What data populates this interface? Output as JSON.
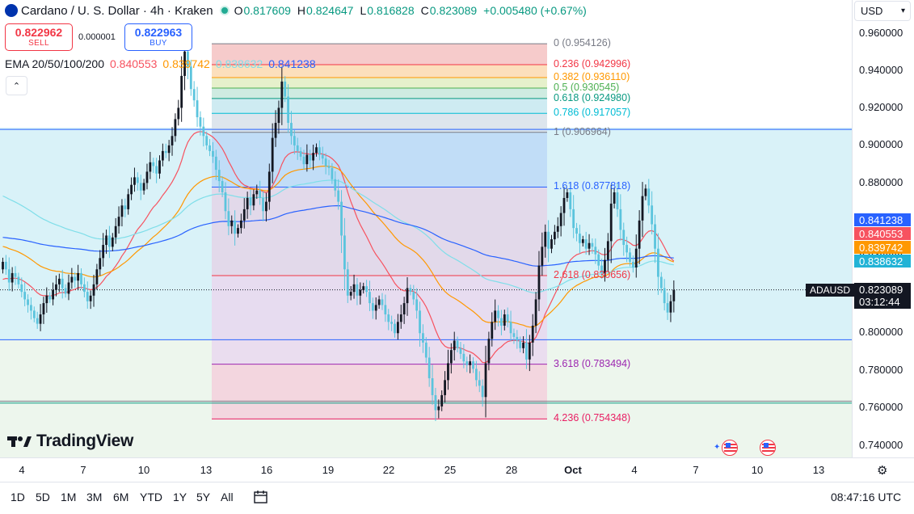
{
  "header": {
    "title": "Cardano / U. S. Dollar · 4h · Kraken",
    "ohlc": [
      {
        "key": "O",
        "value": "0.817609"
      },
      {
        "key": "H",
        "value": "0.824647"
      },
      {
        "key": "L",
        "value": "0.816828"
      },
      {
        "key": "C",
        "value": "0.823089"
      }
    ],
    "change": "+0.005480 (+0.67%)",
    "sell_price": "0.822962",
    "sell_label": "SELL",
    "buy_price": "0.822963",
    "buy_label": "BUY",
    "spread": "0.000001",
    "ema_label": "EMA 20/50/100/200",
    "ema_values": [
      {
        "value": "0.840553",
        "color": "#f7525f"
      },
      {
        "value": "0.839742",
        "color": "#ff9800"
      },
      {
        "value": "0.838632",
        "color": "#7fdee9"
      },
      {
        "value": "0.841238",
        "color": "#2962ff"
      }
    ],
    "collapse_icon": "chevron-up"
  },
  "currency": "USD",
  "symbol": "ADAUSD",
  "current_price": "0.823089",
  "countdown": "03:12:44",
  "price_badges": [
    {
      "value": "0.841238",
      "color": "#2962ff"
    },
    {
      "value": "0.840553",
      "color": "#f7525f"
    },
    {
      "value": "0.839742",
      "color": "#ff9800"
    },
    {
      "value": "0.838632",
      "color": "#22b3d6"
    }
  ],
  "fib_levels": [
    {
      "label": "0 (0.954126)",
      "price": 0.954126,
      "color": "#787b86"
    },
    {
      "label": "0.236 (0.942996)",
      "price": 0.942996,
      "color": "#f23645"
    },
    {
      "label": "0.382 (0.936110)",
      "price": 0.93611,
      "color": "#ff9800"
    },
    {
      "label": "0.5 (0.930545)",
      "price": 0.930545,
      "color": "#4caf50"
    },
    {
      "label": "0.618 (0.924980)",
      "price": 0.92498,
      "color": "#089981"
    },
    {
      "label": "0.786 (0.917057)",
      "price": 0.917057,
      "color": "#00bcd4"
    },
    {
      "label": "1 (0.906964)",
      "price": 0.906964,
      "color": "#787b86"
    },
    {
      "label": "1.618 (0.877818)",
      "price": 0.877818,
      "color": "#2962ff"
    },
    {
      "label": "2.618 (0.830656)",
      "price": 0.830656,
      "color": "#f23645"
    },
    {
      "label": "3.618 (0.783494)",
      "price": 0.783494,
      "color": "#9c27b0"
    },
    {
      "label": "4.236 (0.754348)",
      "price": 0.754348,
      "color": "#e91e63"
    }
  ],
  "horizontal_lines": [
    0.9085,
    0.7965,
    0.7638,
    0.7628
  ],
  "price_ticks": [
    "0.960000",
    "0.940000",
    "0.920000",
    "0.900000",
    "0.880000",
    "0.860000",
    "0.840000",
    "0.820000",
    "0.800000",
    "0.780000",
    "0.760000",
    "0.740000"
  ],
  "date_ticks": [
    "4",
    "7",
    "10",
    "13",
    "16",
    "19",
    "22",
    "25",
    "28",
    "Oct",
    "4",
    "7",
    "10",
    "13"
  ],
  "watermark": "TradingView",
  "range_buttons": [
    "1D",
    "5D",
    "1M",
    "3M",
    "6M",
    "YTD",
    "1Y",
    "5Y",
    "All"
  ],
  "clock": "08:47:16 UTC",
  "chart_data": {
    "type": "candlestick",
    "title": "Cardano / U. S. Dollar · 4h · Kraken",
    "ylim": [
      0.7345,
      0.9715
    ],
    "x_axis_ticks": [
      "4",
      "7",
      "10",
      "13",
      "16",
      "19",
      "22",
      "25",
      "28",
      "Oct",
      "4",
      "7",
      "10",
      "13"
    ],
    "closes": [
      0.838,
      0.834,
      0.827,
      0.832,
      0.83,
      0.826,
      0.822,
      0.818,
      0.815,
      0.812,
      0.808,
      0.805,
      0.81,
      0.816,
      0.82,
      0.818,
      0.823,
      0.826,
      0.829,
      0.824,
      0.821,
      0.827,
      0.83,
      0.828,
      0.832,
      0.826,
      0.822,
      0.817,
      0.82,
      0.826,
      0.834,
      0.84,
      0.847,
      0.852,
      0.846,
      0.851,
      0.857,
      0.862,
      0.868,
      0.866,
      0.874,
      0.879,
      0.883,
      0.88,
      0.876,
      0.88,
      0.886,
      0.891,
      0.889,
      0.885,
      0.892,
      0.897,
      0.896,
      0.9,
      0.905,
      0.914,
      0.92,
      0.937,
      0.95,
      0.942,
      0.93,
      0.924,
      0.915,
      0.91,
      0.905,
      0.9,
      0.897,
      0.894,
      0.887,
      0.881,
      0.875,
      0.865,
      0.857,
      0.86,
      0.853,
      0.856,
      0.86,
      0.866,
      0.872,
      0.868,
      0.874,
      0.876,
      0.872,
      0.865,
      0.87,
      0.886,
      0.904,
      0.912,
      0.92,
      0.934,
      0.926,
      0.912,
      0.905,
      0.9,
      0.897,
      0.894,
      0.89,
      0.895,
      0.892,
      0.896,
      0.899,
      0.895,
      0.893,
      0.889,
      0.888,
      0.882,
      0.876,
      0.87,
      0.852,
      0.834,
      0.82,
      0.822,
      0.826,
      0.82,
      0.823,
      0.825,
      0.822,
      0.816,
      0.812,
      0.815,
      0.818,
      0.815,
      0.81,
      0.806,
      0.805,
      0.8,
      0.806,
      0.81,
      0.816,
      0.824,
      0.822,
      0.818,
      0.812,
      0.8,
      0.795,
      0.787,
      0.776,
      0.767,
      0.759,
      0.761,
      0.767,
      0.775,
      0.784,
      0.791,
      0.796,
      0.792,
      0.789,
      0.785,
      0.783,
      0.785,
      0.781,
      0.775,
      0.772,
      0.766,
      0.784,
      0.797,
      0.806,
      0.812,
      0.808,
      0.804,
      0.81,
      0.806,
      0.8,
      0.798,
      0.796,
      0.792,
      0.795,
      0.786,
      0.795,
      0.804,
      0.818,
      0.836,
      0.846,
      0.854,
      0.845,
      0.85,
      0.854,
      0.857,
      0.864,
      0.872,
      0.875,
      0.866,
      0.856,
      0.853,
      0.848,
      0.85,
      0.845,
      0.848,
      0.846,
      0.842,
      0.836,
      0.832,
      0.839,
      0.849,
      0.869,
      0.875,
      0.866,
      0.855,
      0.847,
      0.843,
      0.838,
      0.835,
      0.845,
      0.86,
      0.873,
      0.877,
      0.868,
      0.858,
      0.845,
      0.83,
      0.824,
      0.816,
      0.811,
      0.817,
      0.823
    ]
  }
}
